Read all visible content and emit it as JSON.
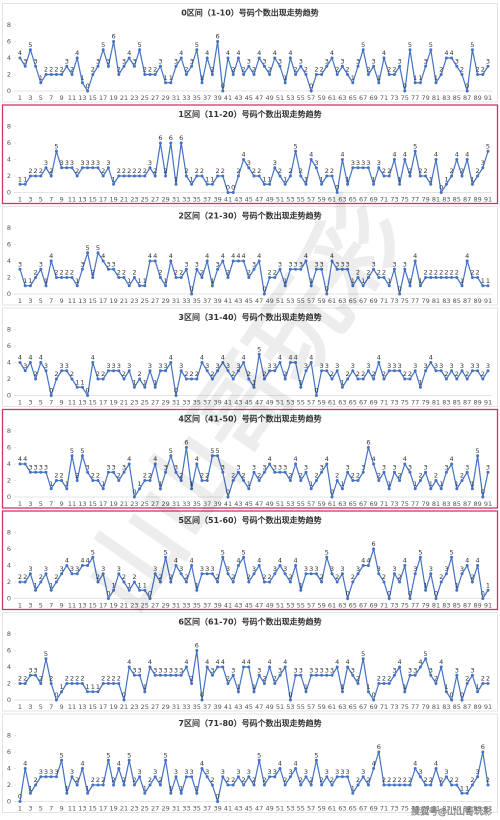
{
  "chart_data": [
    {
      "type": "line",
      "title": "0区间（1-10）号码个数出现走势趋势",
      "highlight": false,
      "color": "#4472c4",
      "ylim": [
        0,
        8
      ],
      "yticks": [
        0,
        2,
        4,
        6,
        8
      ],
      "categories": [
        1,
        null,
        3,
        null,
        5,
        null,
        7,
        null,
        9,
        null,
        11,
        null,
        13,
        null,
        15,
        null,
        17,
        null,
        19,
        null,
        21,
        null,
        23,
        null,
        25,
        null,
        27,
        null,
        29,
        null,
        31,
        null,
        33,
        null,
        35,
        null,
        37,
        null,
        39,
        null,
        41,
        null,
        43,
        null,
        45,
        null,
        47,
        null,
        49,
        null,
        51,
        null,
        53,
        null,
        55,
        null,
        57,
        null,
        59,
        null,
        61,
        null,
        63,
        null,
        65,
        null,
        67,
        null,
        69,
        null,
        71,
        null,
        73,
        null,
        75,
        null,
        77,
        null,
        79,
        null,
        81,
        null,
        83,
        null,
        85,
        null,
        87,
        null,
        89,
        null,
        91
      ],
      "values": [
        4,
        3,
        5,
        3,
        1,
        2,
        2,
        2,
        2,
        3,
        2,
        4,
        1,
        0,
        2,
        3,
        5,
        3,
        6,
        2,
        3,
        4,
        3,
        5,
        2,
        2,
        2,
        3,
        1,
        1,
        3,
        4,
        2,
        3,
        5,
        1,
        4,
        2,
        6,
        0,
        4,
        2,
        4,
        2,
        3,
        2,
        4,
        3,
        2,
        4,
        3,
        1,
        4,
        2,
        3,
        2,
        0,
        2,
        2,
        3,
        4,
        2,
        3,
        2,
        1,
        3,
        5,
        2,
        3,
        1,
        4,
        2,
        2,
        3,
        0,
        5,
        1,
        1,
        3,
        5,
        1,
        2,
        4,
        4,
        3,
        2,
        0,
        5,
        2,
        2,
        3
      ]
    },
    {
      "type": "line",
      "title": "1区间（11-20）号码个数出现走势趋势",
      "highlight": true,
      "color": "#4472c4",
      "ylim": [
        0,
        8
      ],
      "yticks": [
        0,
        2,
        4,
        6,
        8
      ],
      "categories": [
        1,
        null,
        3,
        null,
        5,
        null,
        7,
        null,
        9,
        null,
        11,
        null,
        13,
        null,
        15,
        null,
        17,
        null,
        19,
        null,
        21,
        null,
        23,
        null,
        25,
        null,
        27,
        null,
        29,
        null,
        31,
        null,
        33,
        null,
        35,
        null,
        37,
        null,
        39,
        null,
        41,
        null,
        43,
        null,
        45,
        null,
        47,
        null,
        49,
        null,
        51,
        null,
        53,
        null,
        55,
        null,
        57,
        null,
        59,
        null,
        61,
        null,
        63,
        null,
        65,
        null,
        67,
        null,
        69,
        null,
        71,
        null,
        73,
        null,
        75,
        null,
        77,
        null,
        79,
        null,
        81,
        null,
        83,
        null,
        85,
        null,
        87,
        null,
        89,
        null,
        91
      ],
      "values": [
        1,
        1,
        2,
        2,
        2,
        3,
        2,
        5,
        3,
        3,
        3,
        2,
        3,
        3,
        3,
        3,
        2,
        3,
        1,
        2,
        2,
        2,
        2,
        2,
        2,
        3,
        2,
        6,
        2,
        6,
        1,
        6,
        2,
        1,
        2,
        2,
        1,
        1,
        2,
        2,
        0,
        0,
        2,
        4,
        3,
        2,
        2,
        1,
        1,
        3,
        2,
        1,
        2,
        5,
        2,
        1,
        4,
        3,
        1,
        2,
        2,
        0,
        4,
        1,
        3,
        3,
        3,
        3,
        1,
        3,
        2,
        2,
        4,
        1,
        4,
        2,
        5,
        2,
        2,
        1,
        4,
        0,
        1,
        2,
        4,
        2,
        4,
        1,
        2,
        3,
        5
      ]
    },
    {
      "type": "line",
      "title": "2区间（21-30）号码个数出现走势趋势",
      "highlight": false,
      "color": "#4472c4",
      "ylim": [
        0,
        8
      ],
      "yticks": [
        0,
        2,
        4,
        6,
        8
      ],
      "categories": [
        1,
        null,
        3,
        null,
        5,
        null,
        7,
        null,
        9,
        null,
        11,
        null,
        13,
        null,
        15,
        null,
        17,
        null,
        19,
        null,
        21,
        null,
        23,
        null,
        25,
        null,
        27,
        null,
        29,
        null,
        31,
        null,
        33,
        null,
        35,
        null,
        37,
        null,
        39,
        null,
        41,
        null,
        43,
        null,
        45,
        null,
        47,
        null,
        49,
        null,
        51,
        null,
        53,
        null,
        55,
        null,
        57,
        null,
        59,
        null,
        61,
        null,
        63,
        null,
        65,
        null,
        67,
        null,
        69,
        null,
        71,
        null,
        73,
        null,
        75,
        null,
        77,
        null,
        79,
        null,
        81,
        null,
        83,
        null,
        85,
        null,
        87,
        null,
        89,
        null,
        91
      ],
      "values": [
        3,
        1,
        1,
        2,
        3,
        1,
        4,
        2,
        2,
        2,
        2,
        1,
        3,
        5,
        2,
        5,
        4,
        3,
        3,
        2,
        2,
        1,
        2,
        1,
        1,
        4,
        4,
        2,
        1,
        4,
        2,
        2,
        3,
        0,
        3,
        2,
        4,
        1,
        3,
        4,
        2,
        4,
        4,
        4,
        2,
        3,
        4,
        0,
        2,
        2,
        3,
        1,
        3,
        3,
        3,
        4,
        1,
        3,
        3,
        0,
        4,
        3,
        3,
        3,
        1,
        2,
        1,
        2,
        3,
        2,
        2,
        1,
        3,
        0,
        3,
        1,
        4,
        1,
        2,
        2,
        2,
        2,
        2,
        2,
        2,
        1,
        4,
        2,
        2,
        1,
        1
      ]
    },
    {
      "type": "line",
      "title": "3区间（31-40）号码个数出现走势趋势",
      "highlight": false,
      "color": "#4472c4",
      "ylim": [
        0,
        8
      ],
      "yticks": [
        0,
        2,
        4,
        6,
        8
      ],
      "categories": [
        1,
        null,
        3,
        null,
        5,
        null,
        7,
        null,
        9,
        null,
        11,
        null,
        13,
        null,
        15,
        null,
        17,
        null,
        19,
        null,
        21,
        null,
        23,
        null,
        25,
        null,
        27,
        null,
        29,
        null,
        31,
        null,
        33,
        null,
        35,
        null,
        37,
        null,
        39,
        null,
        41,
        null,
        43,
        null,
        45,
        null,
        47,
        null,
        49,
        null,
        51,
        null,
        53,
        null,
        55,
        null,
        57,
        null,
        59,
        null,
        61,
        null,
        63,
        null,
        65,
        null,
        67,
        null,
        69,
        null,
        71,
        null,
        73,
        null,
        75,
        null,
        77,
        null,
        79,
        null,
        81,
        null,
        83,
        null,
        85,
        null,
        87,
        null,
        89,
        null,
        91
      ],
      "values": [
        4,
        3,
        4,
        2,
        4,
        3,
        0,
        2,
        3,
        3,
        2,
        1,
        1,
        0,
        4,
        2,
        2,
        3,
        3,
        3,
        2,
        3,
        1,
        2,
        1,
        3,
        1,
        3,
        3,
        4,
        0,
        3,
        2,
        2,
        2,
        4,
        3,
        2,
        3,
        4,
        3,
        2,
        3,
        4,
        2,
        1,
        5,
        2,
        3,
        3,
        4,
        2,
        4,
        4,
        1,
        3,
        4,
        0,
        3,
        3,
        2,
        3,
        1,
        2,
        3,
        2,
        2,
        3,
        2,
        4,
        2,
        3,
        3,
        3,
        2,
        2,
        3,
        1,
        3,
        4,
        3,
        3,
        2,
        3,
        2,
        3,
        2,
        3,
        3,
        2,
        3
      ]
    },
    {
      "type": "line",
      "title": "4区间（41-50）号码个数出现走势趋势",
      "highlight": true,
      "color": "#4472c4",
      "ylim": [
        0,
        8
      ],
      "yticks": [
        0,
        2,
        4,
        6,
        8
      ],
      "categories": [
        1,
        null,
        3,
        null,
        5,
        null,
        7,
        null,
        9,
        null,
        11,
        null,
        13,
        null,
        15,
        null,
        17,
        null,
        19,
        null,
        21,
        null,
        23,
        null,
        25,
        null,
        27,
        null,
        29,
        null,
        31,
        null,
        33,
        null,
        35,
        null,
        37,
        null,
        39,
        null,
        41,
        null,
        43,
        null,
        45,
        null,
        47,
        null,
        49,
        null,
        51,
        null,
        53,
        null,
        55,
        null,
        57,
        null,
        59,
        null,
        61,
        null,
        63,
        null,
        65,
        null,
        67,
        null,
        69,
        null,
        71,
        null,
        73,
        null,
        75,
        null,
        77,
        null,
        79,
        null,
        81,
        null,
        83,
        null,
        85,
        null,
        87,
        null,
        89,
        null,
        91
      ],
      "values": [
        4,
        4,
        3,
        3,
        3,
        3,
        1,
        2,
        2,
        1,
        5,
        2,
        5,
        3,
        2,
        2,
        1,
        3,
        3,
        2,
        3,
        4,
        0,
        1,
        2,
        2,
        4,
        1,
        3,
        5,
        3,
        2,
        6,
        1,
        4,
        2,
        2,
        5,
        5,
        3,
        0,
        2,
        3,
        2,
        1,
        3,
        2,
        3,
        4,
        3,
        3,
        3,
        2,
        4,
        2,
        3,
        1,
        2,
        3,
        4,
        0,
        2,
        1,
        3,
        2,
        2,
        3,
        6,
        4,
        2,
        3,
        1,
        3,
        2,
        4,
        3,
        1,
        2,
        3,
        1,
        2,
        1,
        3,
        4,
        1,
        2,
        3,
        1,
        5,
        0,
        3
      ]
    },
    {
      "type": "line",
      "title": "5区间（51-60）号码个数出现走势趋势",
      "highlight": true,
      "color": "#4472c4",
      "ylim": [
        0,
        8
      ],
      "yticks": [
        0,
        2,
        4,
        6,
        8
      ],
      "categories": [
        1,
        null,
        3,
        null,
        5,
        null,
        7,
        null,
        9,
        null,
        11,
        null,
        13,
        null,
        15,
        null,
        17,
        null,
        19,
        null,
        21,
        null,
        23,
        null,
        25,
        null,
        27,
        null,
        29,
        null,
        31,
        null,
        33,
        null,
        35,
        null,
        37,
        null,
        39,
        null,
        41,
        null,
        43,
        null,
        45,
        null,
        47,
        null,
        49,
        null,
        51,
        null,
        53,
        null,
        55,
        null,
        57,
        null,
        59,
        null,
        61,
        null,
        63,
        null,
        65,
        null,
        67,
        null,
        69,
        null,
        71,
        null,
        73,
        null,
        75,
        null,
        77,
        null,
        79,
        null,
        81,
        null,
        83,
        null,
        85,
        null,
        87,
        null,
        89,
        null,
        91
      ],
      "values": [
        2,
        2,
        3,
        1,
        2,
        3,
        1,
        2,
        3,
        4,
        3,
        3,
        4,
        4,
        5,
        2,
        3,
        0,
        1,
        3,
        2,
        1,
        2,
        1,
        1,
        0,
        3,
        2,
        5,
        2,
        4,
        3,
        2,
        4,
        1,
        3,
        3,
        3,
        2,
        5,
        3,
        2,
        4,
        5,
        2,
        3,
        4,
        2,
        2,
        3,
        4,
        3,
        2,
        4,
        1,
        3,
        3,
        3,
        2,
        5,
        3,
        2,
        3,
        0,
        2,
        3,
        4,
        4,
        6,
        3,
        2,
        0,
        3,
        2,
        4,
        0,
        3,
        5,
        1,
        3,
        0,
        2,
        3,
        5,
        1,
        3,
        4,
        2,
        4,
        0,
        1
      ]
    },
    {
      "type": "line",
      "title": "6区间（61-70）号码个数出现走势趋势",
      "highlight": false,
      "color": "#4472c4",
      "ylim": [
        0,
        8
      ],
      "yticks": [
        0,
        2,
        4,
        6,
        8
      ],
      "categories": [
        1,
        null,
        3,
        null,
        5,
        null,
        7,
        null,
        9,
        null,
        11,
        null,
        13,
        null,
        15,
        null,
        17,
        null,
        19,
        null,
        21,
        null,
        23,
        null,
        25,
        null,
        27,
        null,
        29,
        null,
        31,
        null,
        33,
        null,
        35,
        null,
        37,
        null,
        39,
        null,
        41,
        null,
        43,
        null,
        45,
        null,
        47,
        null,
        49,
        null,
        51,
        null,
        53,
        null,
        55,
        null,
        57,
        null,
        59,
        null,
        61,
        null,
        63,
        null,
        65,
        null,
        67,
        null,
        69,
        null,
        71,
        null,
        73,
        null,
        75,
        null,
        77,
        null,
        79,
        null,
        81,
        null,
        83,
        null,
        85,
        null,
        87,
        null,
        89,
        null,
        91
      ],
      "values": [
        2,
        2,
        3,
        3,
        2,
        5,
        2,
        0,
        1,
        2,
        2,
        2,
        2,
        1,
        1,
        1,
        2,
        2,
        2,
        2,
        0,
        4,
        3,
        3,
        1,
        4,
        3,
        3,
        3,
        3,
        3,
        3,
        4,
        2,
        6,
        0,
        4,
        3,
        4,
        4,
        2,
        3,
        1,
        4,
        4,
        1,
        3,
        2,
        4,
        2,
        3,
        4,
        0,
        3,
        3,
        1,
        3,
        3,
        3,
        3,
        3,
        4,
        1,
        4,
        3,
        2,
        5,
        1,
        0,
        2,
        2,
        2,
        3,
        4,
        1,
        3,
        3,
        4,
        5,
        3,
        2,
        4,
        1,
        0,
        3,
        0,
        2,
        3,
        1,
        2,
        2
      ]
    },
    {
      "type": "line",
      "title": "7区间（71-80）号码个数出现走势趋势",
      "highlight": false,
      "color": "#4472c4",
      "ylim": [
        0,
        8
      ],
      "yticks": [
        0,
        2,
        4,
        6,
        8
      ],
      "categories": [
        1,
        null,
        3,
        null,
        5,
        null,
        7,
        null,
        9,
        null,
        11,
        null,
        13,
        null,
        15,
        null,
        17,
        null,
        19,
        null,
        21,
        null,
        23,
        null,
        25,
        null,
        27,
        null,
        29,
        null,
        31,
        null,
        33,
        null,
        35,
        null,
        37,
        null,
        39,
        null,
        41,
        null,
        43,
        null,
        45,
        null,
        47,
        null,
        49,
        null,
        51,
        null,
        53,
        null,
        55,
        null,
        57,
        null,
        59,
        null,
        61,
        null,
        63,
        null,
        65,
        null,
        67,
        null,
        69,
        null,
        71,
        null,
        73,
        null,
        75,
        null,
        77,
        null,
        79,
        null,
        81,
        null,
        83,
        null,
        85,
        null,
        87,
        null,
        89,
        null,
        91
      ],
      "values": [
        0,
        4,
        1,
        2,
        3,
        3,
        3,
        3,
        5,
        1,
        3,
        2,
        4,
        1,
        2,
        2,
        2,
        5,
        2,
        4,
        2,
        5,
        2,
        3,
        1,
        2,
        3,
        2,
        5,
        1,
        3,
        1,
        3,
        3,
        1,
        4,
        3,
        2,
        0,
        3,
        2,
        2,
        3,
        2,
        3,
        2,
        5,
        2,
        3,
        3,
        4,
        2,
        3,
        4,
        2,
        3,
        2,
        5,
        2,
        3,
        2,
        3,
        3,
        3,
        1,
        2,
        3,
        2,
        4,
        6,
        2,
        2,
        2,
        2,
        2,
        2,
        4,
        3,
        2,
        2,
        4,
        2,
        3,
        2,
        2,
        1,
        1,
        2,
        3,
        6,
        2
      ]
    }
  ],
  "watermark": "山山哥玩彩",
  "footer": "搜狐号@山山哥玩彩"
}
